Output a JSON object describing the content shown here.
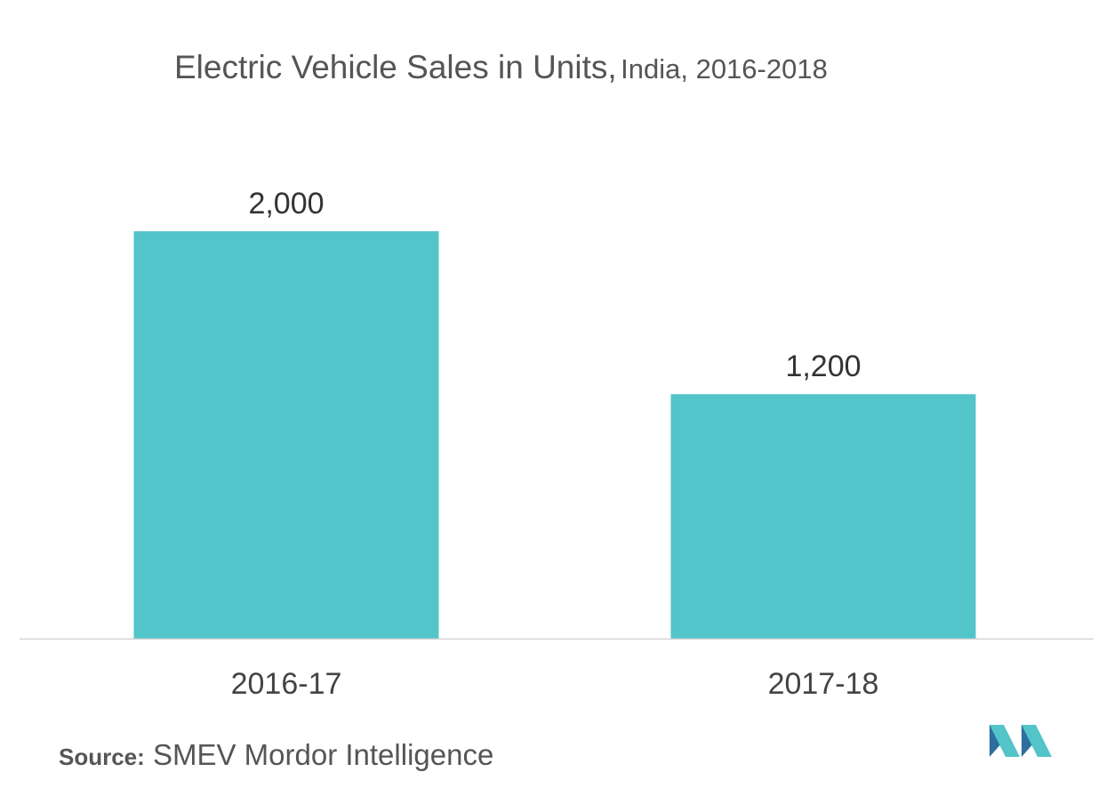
{
  "title": {
    "main": "Electric Vehicle Sales in Units,",
    "sub": "India, 2016-2018"
  },
  "chart_data": {
    "type": "bar",
    "categories": [
      "2016-17",
      "2017-18"
    ],
    "values": [
      2000,
      1200
    ],
    "value_labels": [
      "2,000",
      "1,200"
    ],
    "ylim": [
      0,
      2000
    ],
    "grid": false,
    "legend": "none",
    "bar_color": "#52C4CA",
    "axis_color": "#D3D3D3"
  },
  "source": {
    "label": "Source:",
    "text": "SMEV Mordor Intelligence"
  },
  "logo": {
    "icon": "mordor-intelligence-logo-icon"
  }
}
